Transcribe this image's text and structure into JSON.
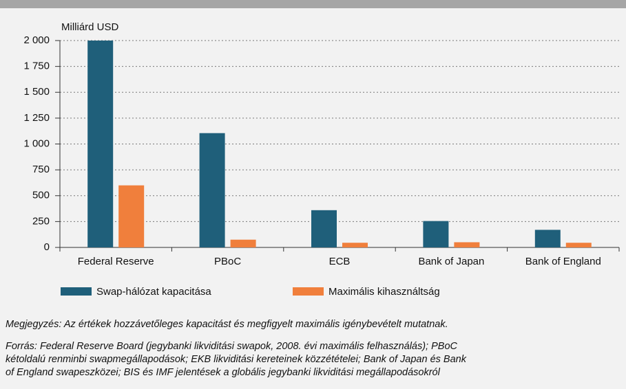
{
  "chart_data": {
    "type": "bar",
    "y_axis_label": "Milliárd USD",
    "categories": [
      "Federal Reserve",
      "PBoC",
      "ECB",
      "Bank of Japan",
      "Bank of England"
    ],
    "series": [
      {
        "name": "Swap-hálózat kapacitása",
        "color": "#1f5f7a",
        "values": [
          2000,
          1105,
          360,
          255,
          170
        ]
      },
      {
        "name": "Maximális kihasználtság",
        "color": "#f07f3c",
        "values": [
          600,
          75,
          45,
          50,
          45
        ]
      }
    ],
    "ylim": [
      0,
      2000
    ],
    "yticks": [
      0,
      250,
      500,
      750,
      {
        "value": 1000,
        "label": "1 000"
      },
      {
        "value": 1250,
        "label": "1 250"
      },
      {
        "value": 1500,
        "label": "1 500"
      },
      {
        "value": 1750,
        "label": "1 750"
      },
      {
        "value": 2000,
        "label": "2 000"
      }
    ],
    "grid": true,
    "note": "Megjegyzés: Az értékek hozzávetőleges kapacitást és megfigyelt maximális igénybevételt mutatnak.",
    "source_lines": [
      "Forrás: Federal Reserve Board (jegybanki likviditási swapok, 2008. évi maximális felhasználás); PBoC",
      "kétoldalú renminbi swapmegállapodások; EKB likviditási kereteinek közzétételei; Bank of Japan és Bank",
      "of England swapeszközei; BIS és IMF jelentések a globális jegybanki likviditási megállapodásokról"
    ]
  }
}
